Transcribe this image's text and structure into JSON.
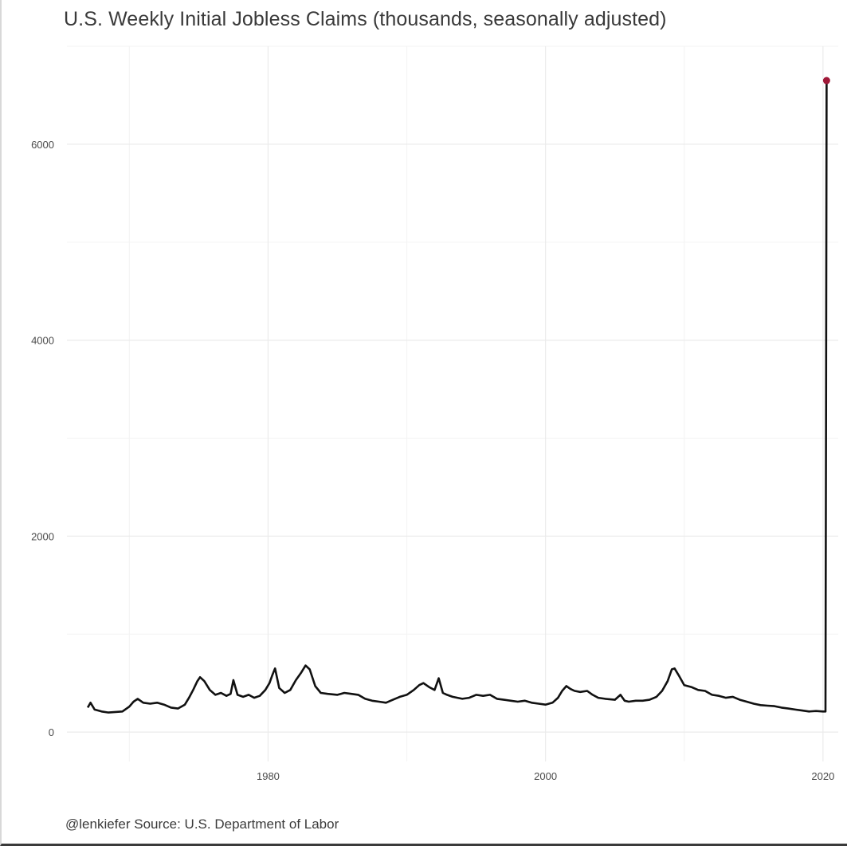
{
  "chart_data": {
    "type": "line",
    "title": "U.S. Weekly Initial Jobless Claims (thousands, seasonally adjusted)",
    "caption": "@lenkiefer Source: U.S. Department of Labor",
    "xlabel": "",
    "ylabel": "",
    "xlim": [
      1965.5,
      2021.1
    ],
    "ylim": [
      -300,
      7000
    ],
    "x_ticks": [
      1980,
      2000,
      2020
    ],
    "x_tick_labels": [
      "1980",
      "2000",
      "2020"
    ],
    "y_ticks": [
      0,
      2000,
      4000,
      6000
    ],
    "y_tick_labels": [
      "0",
      "2000",
      "4000",
      "6000"
    ],
    "grid": true,
    "legend": "none",
    "line_color": "#111111",
    "highlight_color": "#a01838",
    "series": [
      {
        "x": [
          1967.0,
          1967.2,
          1967.5,
          1968.0,
          1968.5,
          1969.0,
          1969.5,
          1970.0,
          1970.3,
          1970.6,
          1971.0,
          1971.5,
          1972.0,
          1972.5,
          1973.0,
          1973.5,
          1974.0,
          1974.3,
          1974.6,
          1974.9,
          1975.1,
          1975.4,
          1975.8,
          1976.2,
          1976.6,
          1977.0,
          1977.3,
          1977.5,
          1977.8,
          1978.2,
          1978.6,
          1979.0,
          1979.4,
          1979.8,
          1980.1,
          1980.3,
          1980.5,
          1980.8,
          1981.2,
          1981.6,
          1982.0,
          1982.4,
          1982.7,
          1983.0,
          1983.4,
          1983.8,
          1984.3,
          1985.0,
          1985.5,
          1986.0,
          1986.5,
          1987.0,
          1987.5,
          1988.0,
          1988.5,
          1989.0,
          1989.5,
          1990.0,
          1990.5,
          1990.9,
          1991.2,
          1991.6,
          1992.0,
          1992.3,
          1992.6,
          1992.9,
          1993.3,
          1994.0,
          1994.5,
          1995.0,
          1995.5,
          1996.0,
          1996.5,
          1997.0,
          1997.5,
          1998.0,
          1998.5,
          1999.0,
          1999.5,
          2000.0,
          2000.5,
          2000.9,
          2001.2,
          2001.5,
          2001.8,
          2002.1,
          2002.5,
          2003.0,
          2003.4,
          2003.8,
          2004.3,
          2005.0,
          2005.4,
          2005.7,
          2006.0,
          2006.5,
          2007.0,
          2007.5,
          2008.0,
          2008.4,
          2008.8,
          2009.1,
          2009.3,
          2009.6,
          2010.0,
          2010.5,
          2011.0,
          2011.5,
          2012.0,
          2012.5,
          2013.0,
          2013.5,
          2014.0,
          2014.5,
          2015.0,
          2015.5,
          2016.0,
          2016.5,
          2017.0,
          2017.5,
          2018.0,
          2018.5,
          2019.0,
          2019.5,
          2020.0,
          2020.18,
          2020.22,
          2020.26
        ],
        "values": [
          250,
          300,
          230,
          210,
          200,
          205,
          210,
          260,
          310,
          340,
          300,
          290,
          300,
          280,
          250,
          240,
          280,
          350,
          430,
          520,
          560,
          520,
          430,
          380,
          400,
          370,
          390,
          530,
          380,
          360,
          380,
          350,
          370,
          430,
          500,
          580,
          650,
          450,
          400,
          430,
          530,
          610,
          680,
          640,
          470,
          400,
          390,
          380,
          400,
          390,
          380,
          340,
          320,
          310,
          300,
          330,
          360,
          380,
          430,
          480,
          500,
          460,
          430,
          550,
          400,
          380,
          360,
          340,
          350,
          380,
          370,
          380,
          340,
          330,
          320,
          310,
          320,
          300,
          290,
          280,
          300,
          350,
          420,
          470,
          440,
          420,
          410,
          420,
          380,
          350,
          340,
          330,
          380,
          320,
          310,
          320,
          320,
          330,
          360,
          420,
          520,
          640,
          650,
          580,
          480,
          460,
          430,
          420,
          380,
          370,
          350,
          360,
          330,
          310,
          290,
          275,
          270,
          265,
          250,
          240,
          230,
          220,
          210,
          215,
          210,
          210,
          3300,
          6650
        ]
      }
    ]
  }
}
